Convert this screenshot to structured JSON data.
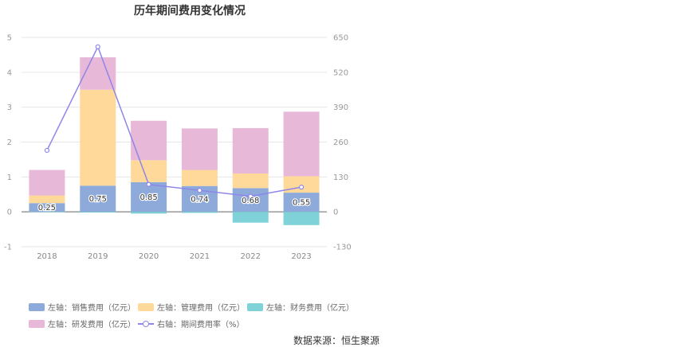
{
  "title": "历年期间费用变化情况",
  "source": "数据来源：恒生聚源",
  "legend": [
    {
      "label": "左轴：销售费用（亿元）",
      "color": "#8eaadb",
      "kind": "bar"
    },
    {
      "label": "左轴：管理费用（亿元）",
      "color": "#ffd99a",
      "kind": "bar"
    },
    {
      "label": "左轴：财务费用（亿元）",
      "color": "#7fd3d8",
      "kind": "bar"
    },
    {
      "label": "左轴：研发费用（亿元）",
      "color": "#e7b8d8",
      "kind": "bar"
    },
    {
      "label": "右轴：期间费用率（%）",
      "color": "#8e86e8",
      "kind": "line"
    }
  ],
  "chart_data": {
    "type": "bar",
    "categories": [
      "2018",
      "2019",
      "2020",
      "2021",
      "2022",
      "2023"
    ],
    "left_axis": {
      "ylim": [
        -1,
        5
      ],
      "ticks": [
        "-1",
        "0",
        "1",
        "2",
        "3",
        "4",
        "5"
      ]
    },
    "right_axis": {
      "ylim": [
        -130,
        650
      ],
      "ticks": [
        "-130",
        "0",
        "130",
        "260",
        "390",
        "520",
        "650"
      ]
    },
    "series": [
      {
        "name": "左轴：销售费用（亿元）",
        "axis": "left",
        "color": "#8eaadb",
        "values": [
          0.25,
          0.75,
          0.85,
          0.74,
          0.68,
          0.55
        ],
        "labels": [
          "0.25",
          "0.75",
          "0.85",
          "0.74",
          "0.68",
          "0.55"
        ]
      },
      {
        "name": "左轴：管理费用（亿元）",
        "axis": "left",
        "color": "#ffd99a",
        "values": [
          0.22,
          2.75,
          0.63,
          0.46,
          0.42,
          0.47
        ]
      },
      {
        "name": "左轴：财务费用（亿元）",
        "axis": "left",
        "color": "#7fd3d8",
        "values": [
          -0.01,
          -0.02,
          -0.05,
          -0.03,
          -0.31,
          -0.38
        ]
      },
      {
        "name": "左轴：研发费用（亿元）",
        "axis": "left",
        "color": "#e7b8d8",
        "values": [
          0.73,
          0.93,
          1.13,
          1.19,
          1.3,
          1.85
        ]
      },
      {
        "name": "右轴：期间费用率（%）",
        "axis": "right",
        "type": "line",
        "color": "#8e86e8",
        "values": [
          229,
          615,
          102,
          80,
          58,
          92
        ]
      }
    ],
    "grid": true,
    "legend_position": "bottom-left"
  }
}
